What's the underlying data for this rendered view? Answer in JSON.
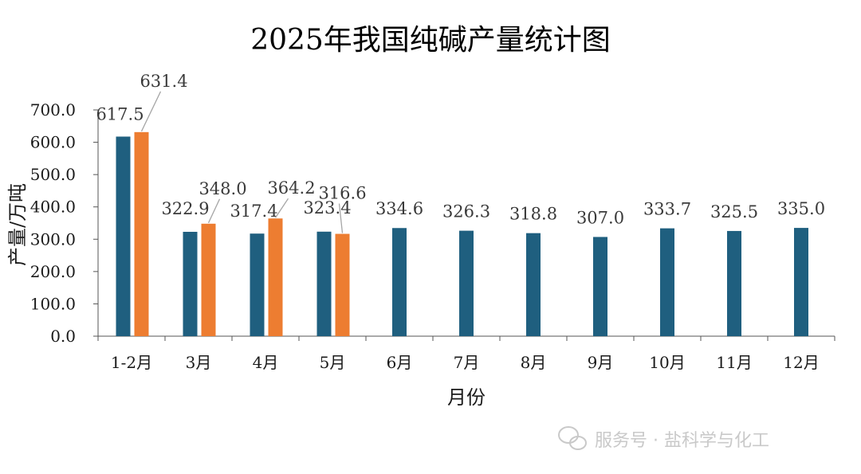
{
  "chart_data": {
    "type": "bar",
    "title": "2025年我国纯碱产量统计图",
    "xlabel": "月份",
    "ylabel": "产量/万吨",
    "ylim": [
      0,
      700
    ],
    "yticks": [
      "0.0",
      "100.0",
      "200.0",
      "300.0",
      "400.0",
      "500.0",
      "600.0",
      "700.0"
    ],
    "categories": [
      "1-2月",
      "3月",
      "4月",
      "5月",
      "6月",
      "7月",
      "8月",
      "9月",
      "10月",
      "11月",
      "12月"
    ],
    "series": [
      {
        "color": "#1f5f7f",
        "values": [
          617.5,
          322.9,
          317.4,
          323.4,
          334.6,
          326.3,
          318.8,
          307.0,
          333.7,
          325.5,
          335.0
        ],
        "labels": [
          "617.5",
          "322.9",
          "317.4",
          "323.4",
          "334.6",
          "326.3",
          "318.8",
          "307.0",
          "333.7",
          "325.5",
          "335.0"
        ]
      },
      {
        "color": "#ed7d31",
        "values": [
          631.4,
          348.0,
          364.2,
          316.6,
          null,
          null,
          null,
          null,
          null,
          null,
          null
        ],
        "labels": [
          "631.4",
          "348.0",
          "364.2",
          "316.6",
          "",
          "",
          "",
          "",
          "",
          "",
          ""
        ]
      }
    ],
    "grid": false,
    "legend": "none"
  },
  "watermark": {
    "icon": "wechat-icon",
    "text": "服务号 · 盐科学与化工"
  }
}
